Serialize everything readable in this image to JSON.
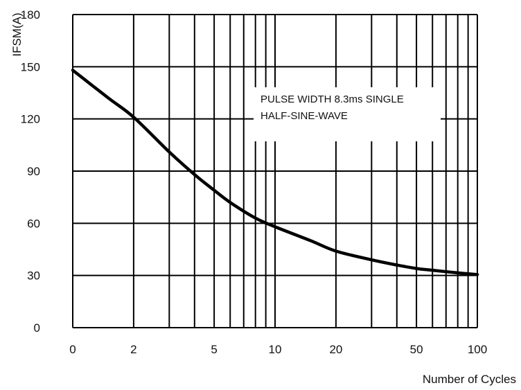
{
  "chart_data": {
    "type": "line",
    "title": "",
    "xlabel": "Number of Cycles",
    "ylabel": "IFSM(A)",
    "x_scale": "log",
    "xlim": [
      1,
      100
    ],
    "ylim": [
      0,
      180
    ],
    "x_ticks": [
      {
        "value": 1,
        "label": "0"
      },
      {
        "value": 2,
        "label": "2"
      },
      {
        "value": 5,
        "label": "5"
      },
      {
        "value": 10,
        "label": "10"
      },
      {
        "value": 20,
        "label": "20"
      },
      {
        "value": 50,
        "label": "50"
      },
      {
        "value": 100,
        "label": "100"
      }
    ],
    "y_ticks": [
      {
        "value": 0,
        "label": "0"
      },
      {
        "value": 30,
        "label": "30"
      },
      {
        "value": 60,
        "label": "60"
      },
      {
        "value": 90,
        "label": "90"
      },
      {
        "value": 120,
        "label": "120"
      },
      {
        "value": 150,
        "label": "150"
      },
      {
        "value": 180,
        "label": "180"
      }
    ],
    "grid": true,
    "series": [
      {
        "color": "#000000",
        "x": [
          1,
          1.5,
          2,
          3,
          4,
          5,
          6,
          8,
          10,
          15,
          20,
          30,
          40,
          50,
          60,
          80,
          100
        ],
        "values": [
          148,
          132,
          121,
          101,
          88,
          79,
          72,
          63,
          58,
          50,
          44,
          39,
          36,
          34,
          33,
          31.5,
          30.5
        ]
      }
    ],
    "annotations": [
      "PULSE WIDTH 8.3ms SINGLE",
      "HALF-SINE-WAVE"
    ]
  }
}
